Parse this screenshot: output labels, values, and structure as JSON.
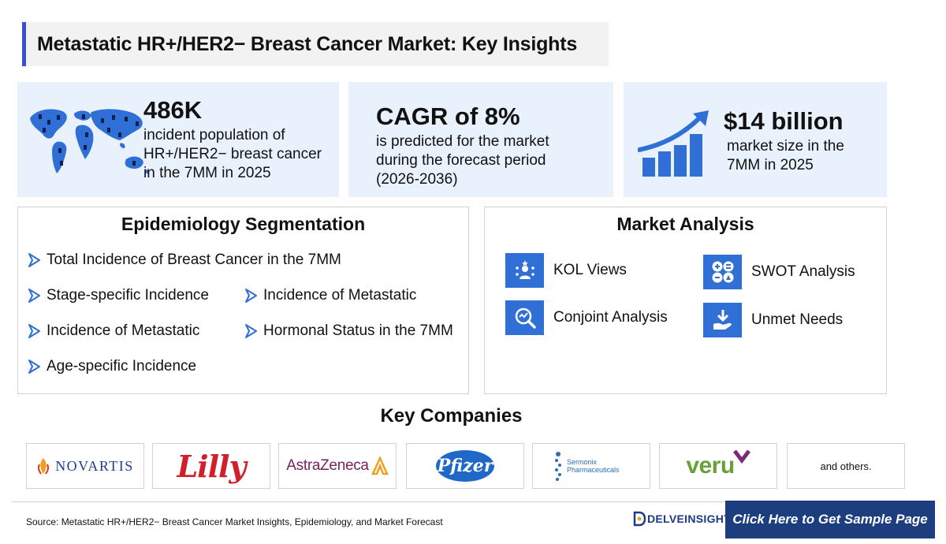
{
  "title": "Metastatic HR+/HER2− Breast Cancer Market: Key Insights",
  "stats": [
    {
      "big": "486K",
      "desc": [
        "incident population of",
        "HR+/HER2− breast cancer",
        "in the 7MM in 2025"
      ],
      "icon": "world-map-icon"
    },
    {
      "big": "CAGR of 8%",
      "desc": [
        "is predicted for the market",
        "during the forecast period",
        "(2026-2036)"
      ]
    },
    {
      "big": "$14 billion",
      "desc": [
        "market size in the",
        "7MM in 2025"
      ],
      "icon": "growth-chart-icon"
    }
  ],
  "epidemiology": {
    "heading": "Epidemiology Segmentation",
    "items": [
      "Total Incidence of Breast Cancer in the 7MM",
      "Stage-specific Incidence",
      "Incidence of Metastatic",
      "Incidence of Metastatic",
      "Hormonal Status in the 7MM",
      "Age-specific Incidence"
    ]
  },
  "market": {
    "heading": "Market Analysis",
    "items": [
      {
        "label": "KOL Views",
        "icon": "kol-views-icon"
      },
      {
        "label": "SWOT Analysis",
        "icon": "swot-icon"
      },
      {
        "label": "Conjoint Analysis",
        "icon": "conjoint-analysis-icon"
      },
      {
        "label": "Unmet Needs",
        "icon": "unmet-needs-icon"
      }
    ],
    "accent": "#2f6fd6"
  },
  "companies": {
    "heading": "Key Companies",
    "logos": [
      "NOVARTIS",
      "Lilly",
      "AstraZeneca",
      "Pfizer",
      "Sermonix Pharmaceuticals",
      "veru"
    ],
    "others": "and others."
  },
  "footer": {
    "source": "Source: Metastatic HR+/HER2− Breast Cancer Market Insights, Epidemiology, and Market Forecast",
    "brand": "DELVEINSIGHT",
    "cta": "Click Here to Get Sample Page",
    "cta_color": "#1c3e7f"
  }
}
